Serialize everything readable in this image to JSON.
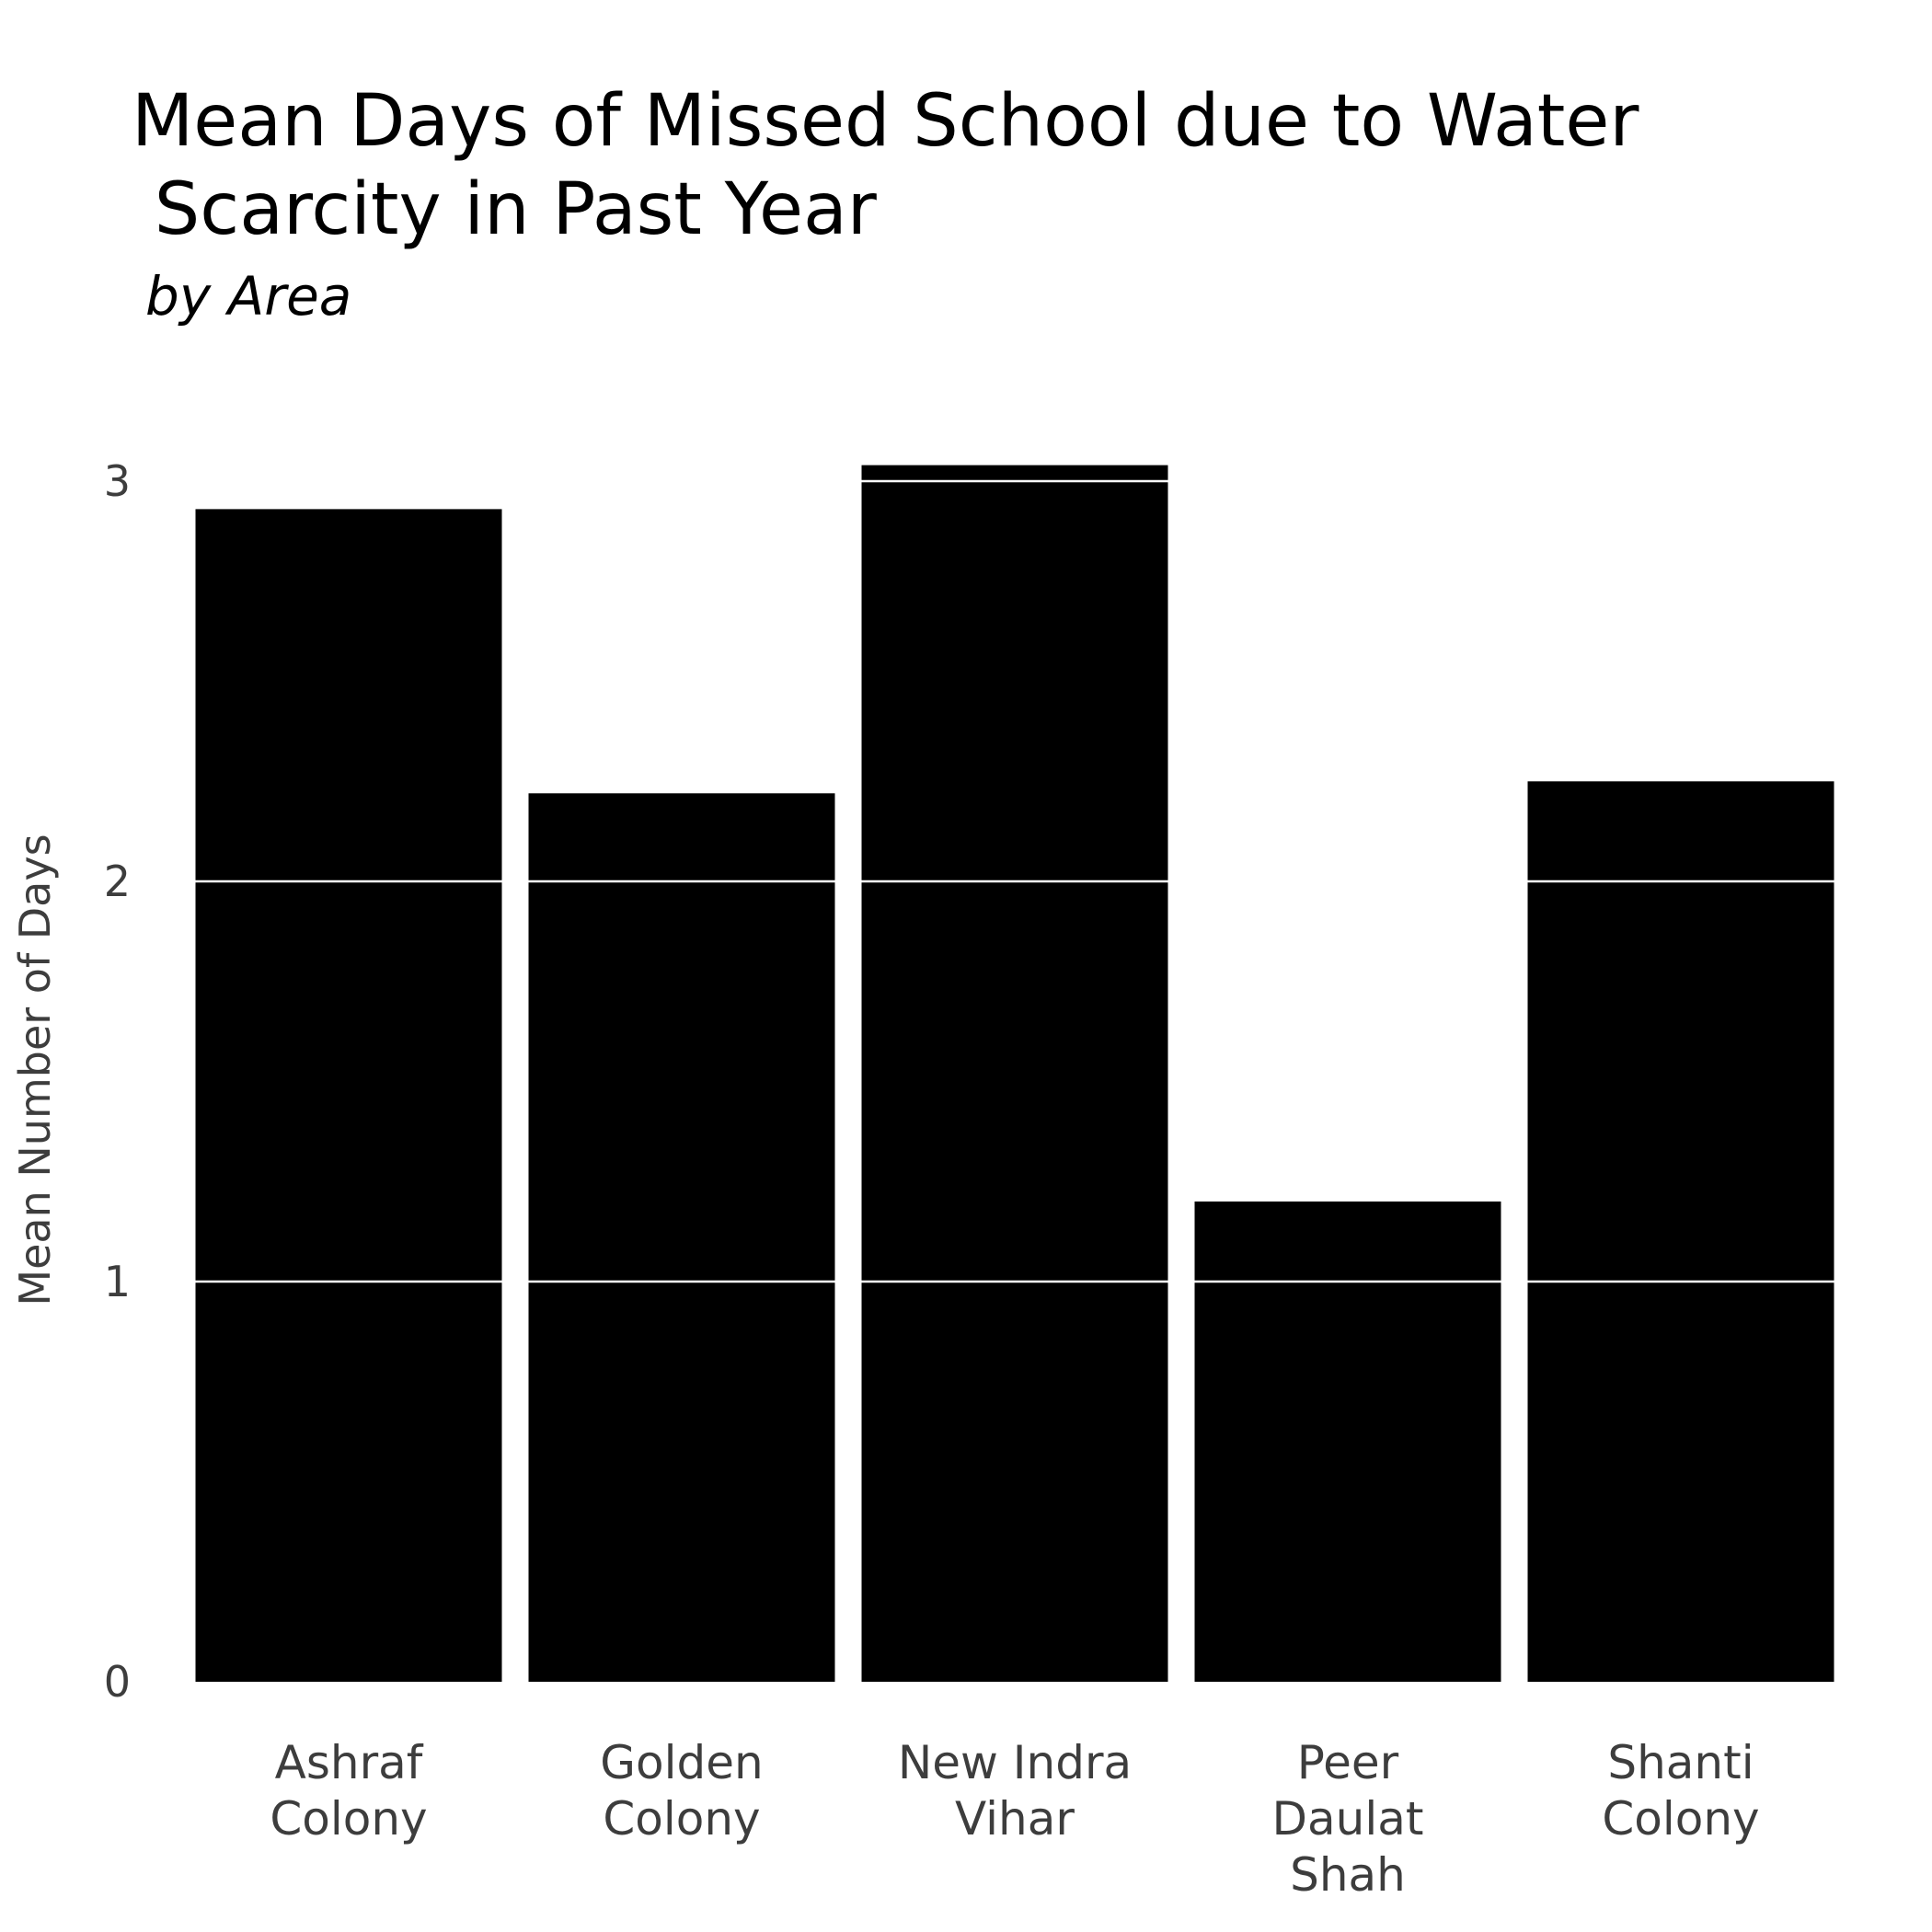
{
  "chart_data": {
    "type": "bar",
    "title_lines": [
      "Mean Days of Missed School due to Water",
      " Scarcity in Past Year"
    ],
    "subtitle": "by Area",
    "xlabel": "",
    "ylabel": "Mean Number of Days",
    "categories": [
      "Ashraf Colony",
      "Golden Colony",
      "New Indra Vihar",
      "Peer Daulat Shah",
      "Shanti Colony"
    ],
    "category_label_lines": [
      [
        "Ashraf",
        "Colony"
      ],
      [
        "Golden",
        "Colony"
      ],
      [
        "New Indra",
        "Vihar"
      ],
      [
        "Peer",
        "Daulat",
        "Shah"
      ],
      [
        "Shanti",
        "Colony"
      ]
    ],
    "values": [
      2.93,
      2.22,
      3.04,
      1.2,
      2.25
    ],
    "ylim": [
      0,
      3.1
    ],
    "yticks": [
      0,
      1,
      2,
      3
    ],
    "ytick_labels": [
      "0",
      "1",
      "2",
      "3"
    ],
    "grid": "horizontal, white, drawn over bars",
    "bar_color": "#000000",
    "grid_color": "#ffffff",
    "text_color": "#3d3d3d"
  }
}
